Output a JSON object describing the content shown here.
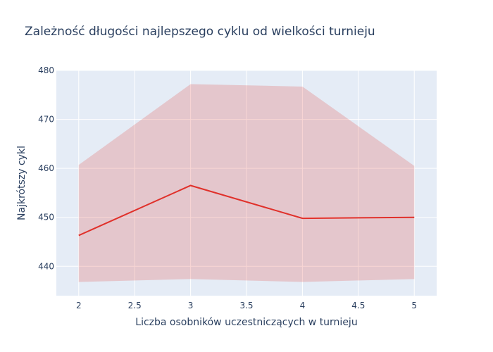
{
  "chart_data": {
    "type": "line",
    "title": "Zależność długości najlepszego cyklu od wielkości turnieju",
    "xlabel": "Liczba osobników uczestniczących w turnieju",
    "ylabel": "Najkrótszy cykl",
    "xlim": [
      1.8,
      5.2
    ],
    "ylim": [
      434,
      480
    ],
    "x_ticks": [
      2,
      2.5,
      3,
      3.5,
      4,
      4.5,
      5
    ],
    "x_tick_labels": [
      "2",
      "2.5",
      "3",
      "3.5",
      "4",
      "4.5",
      "5"
    ],
    "y_ticks": [
      440,
      450,
      460,
      470,
      480
    ],
    "y_tick_labels": [
      "440",
      "450",
      "460",
      "470",
      "480"
    ],
    "grid": true,
    "x": [
      2,
      3,
      4,
      5
    ],
    "series": [
      {
        "values": [
          446.3,
          456.5,
          449.8,
          450.0
        ],
        "color": "#e0302a"
      }
    ],
    "band": {
      "upper": [
        460.7,
        477.2,
        476.7,
        460.5
      ],
      "lower": [
        436.8,
        437.4,
        436.8,
        437.4
      ],
      "color": "#e0302a",
      "opacity": 0.2
    },
    "colors": {
      "plot_background": "#e5ecf6",
      "grid": "#ffffff",
      "text": "#2a3f5f"
    }
  }
}
